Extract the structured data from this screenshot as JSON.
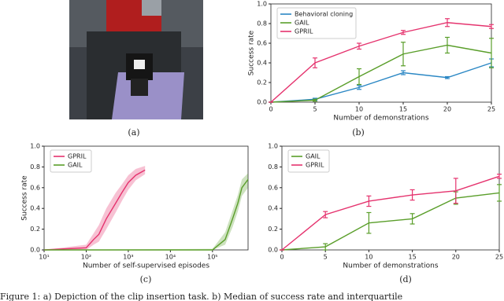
{
  "captions": [
    "(a)",
    "(b)",
    "(c)",
    "(d)"
  ],
  "figure_caption": "Figure 1: a) Depiction of the clip insertion task. b) Median of success rate and interquartile",
  "chart_data": [
    {
      "type": "line",
      "xlabel": "Number of demonstrations",
      "ylabel": "Success rate",
      "xlim": [
        0,
        25
      ],
      "ylim": [
        0,
        1
      ],
      "xticks": [
        0,
        5,
        10,
        15,
        20,
        25
      ],
      "yticks": [
        {
          "value": 0,
          "label": "0.0"
        },
        0.2,
        0.4,
        0.6,
        0.8,
        {
          "value": 1,
          "label": "1.0"
        }
      ],
      "legend": "upper-left",
      "x": [
        0,
        5,
        10,
        15,
        20,
        25
      ],
      "series": [
        {
          "name": "Behavioral cloning",
          "color": "#2a87c4",
          "values": [
            0,
            0.03,
            0.15,
            0.3,
            0.25,
            0.4
          ],
          "errors": [
            0,
            0.01,
            0.02,
            0.02,
            0.01,
            0.04
          ]
        },
        {
          "name": "GAIL",
          "color": "#5a9e2a",
          "values": [
            0,
            0.02,
            0.26,
            0.49,
            0.58,
            0.5
          ],
          "errors": [
            0,
            0.01,
            0.08,
            0.12,
            0.08,
            0.15
          ]
        },
        {
          "name": "GPRIL",
          "color": "#e5336e",
          "values": [
            0,
            0.4,
            0.57,
            0.71,
            0.81,
            0.77
          ],
          "errors": [
            0,
            0.05,
            0.03,
            0.02,
            0.04,
            0.02
          ]
        }
      ]
    },
    {
      "type": "band-line",
      "xlabel": "Number of self-supervised episodes",
      "ylabel": "Success rate",
      "xlog": true,
      "xlim": [
        10,
        700000
      ],
      "ylim": [
        0,
        1
      ],
      "xticks": [
        {
          "value": 10,
          "label": "10¹"
        },
        {
          "value": 100,
          "label": "10²"
        },
        {
          "value": 1000,
          "label": "10³"
        },
        {
          "value": 10000,
          "label": "10⁴"
        },
        {
          "value": 100000,
          "label": "10⁵"
        }
      ],
      "yticks": [
        {
          "value": 0,
          "label": "0.0"
        },
        0.2,
        0.4,
        0.6,
        0.8,
        {
          "value": 1,
          "label": "1.0"
        }
      ],
      "legend": "upper-left",
      "series": [
        {
          "name": "GPRIL",
          "color": "#e5336e",
          "x": [
            10,
            100,
            150,
            200,
            300,
            500,
            700,
            1000,
            1500,
            2500
          ],
          "values": [
            0,
            0.02,
            0.1,
            0.15,
            0.3,
            0.45,
            0.55,
            0.65,
            0.72,
            0.77
          ],
          "lower": [
            0,
            0,
            0.05,
            0.08,
            0.2,
            0.36,
            0.47,
            0.58,
            0.67,
            0.73
          ],
          "upper": [
            0,
            0.05,
            0.16,
            0.24,
            0.4,
            0.55,
            0.63,
            0.72,
            0.78,
            0.81
          ]
        },
        {
          "name": "GAIL",
          "color": "#5a9e2a",
          "x": [
            10,
            100000,
            200000,
            300000,
            400000,
            500000,
            700000
          ],
          "values": [
            0,
            0,
            0.1,
            0.3,
            0.45,
            0.6,
            0.68
          ],
          "lower": [
            0,
            0,
            0.05,
            0.22,
            0.37,
            0.52,
            0.6
          ],
          "upper": [
            0,
            0.01,
            0.17,
            0.38,
            0.53,
            0.68,
            0.74
          ]
        }
      ]
    },
    {
      "type": "line",
      "xlabel": "Number of demonstrations",
      "xlim": [
        0,
        25
      ],
      "ylim": [
        0,
        1
      ],
      "xticks": [
        0,
        5,
        10,
        15,
        20,
        25
      ],
      "yticks": [
        {
          "value": 0,
          "label": "0.0"
        },
        0.2,
        0.4,
        0.6,
        0.8,
        {
          "value": 1,
          "label": "1.0"
        }
      ],
      "legend": "upper-left",
      "x": [
        0,
        5,
        10,
        15,
        20,
        25
      ],
      "series": [
        {
          "name": "GAIL",
          "color": "#5a9e2a",
          "values": [
            0,
            0.03,
            0.26,
            0.3,
            0.5,
            0.55
          ],
          "errors": [
            0,
            0.03,
            0.1,
            0.05,
            0.06,
            0.08
          ]
        },
        {
          "name": "GPRIL",
          "color": "#e5336e",
          "values": [
            0,
            0.34,
            0.47,
            0.53,
            0.57,
            0.71
          ],
          "errors": [
            0,
            0.03,
            0.05,
            0.05,
            0.12,
            0.02
          ]
        }
      ]
    }
  ]
}
